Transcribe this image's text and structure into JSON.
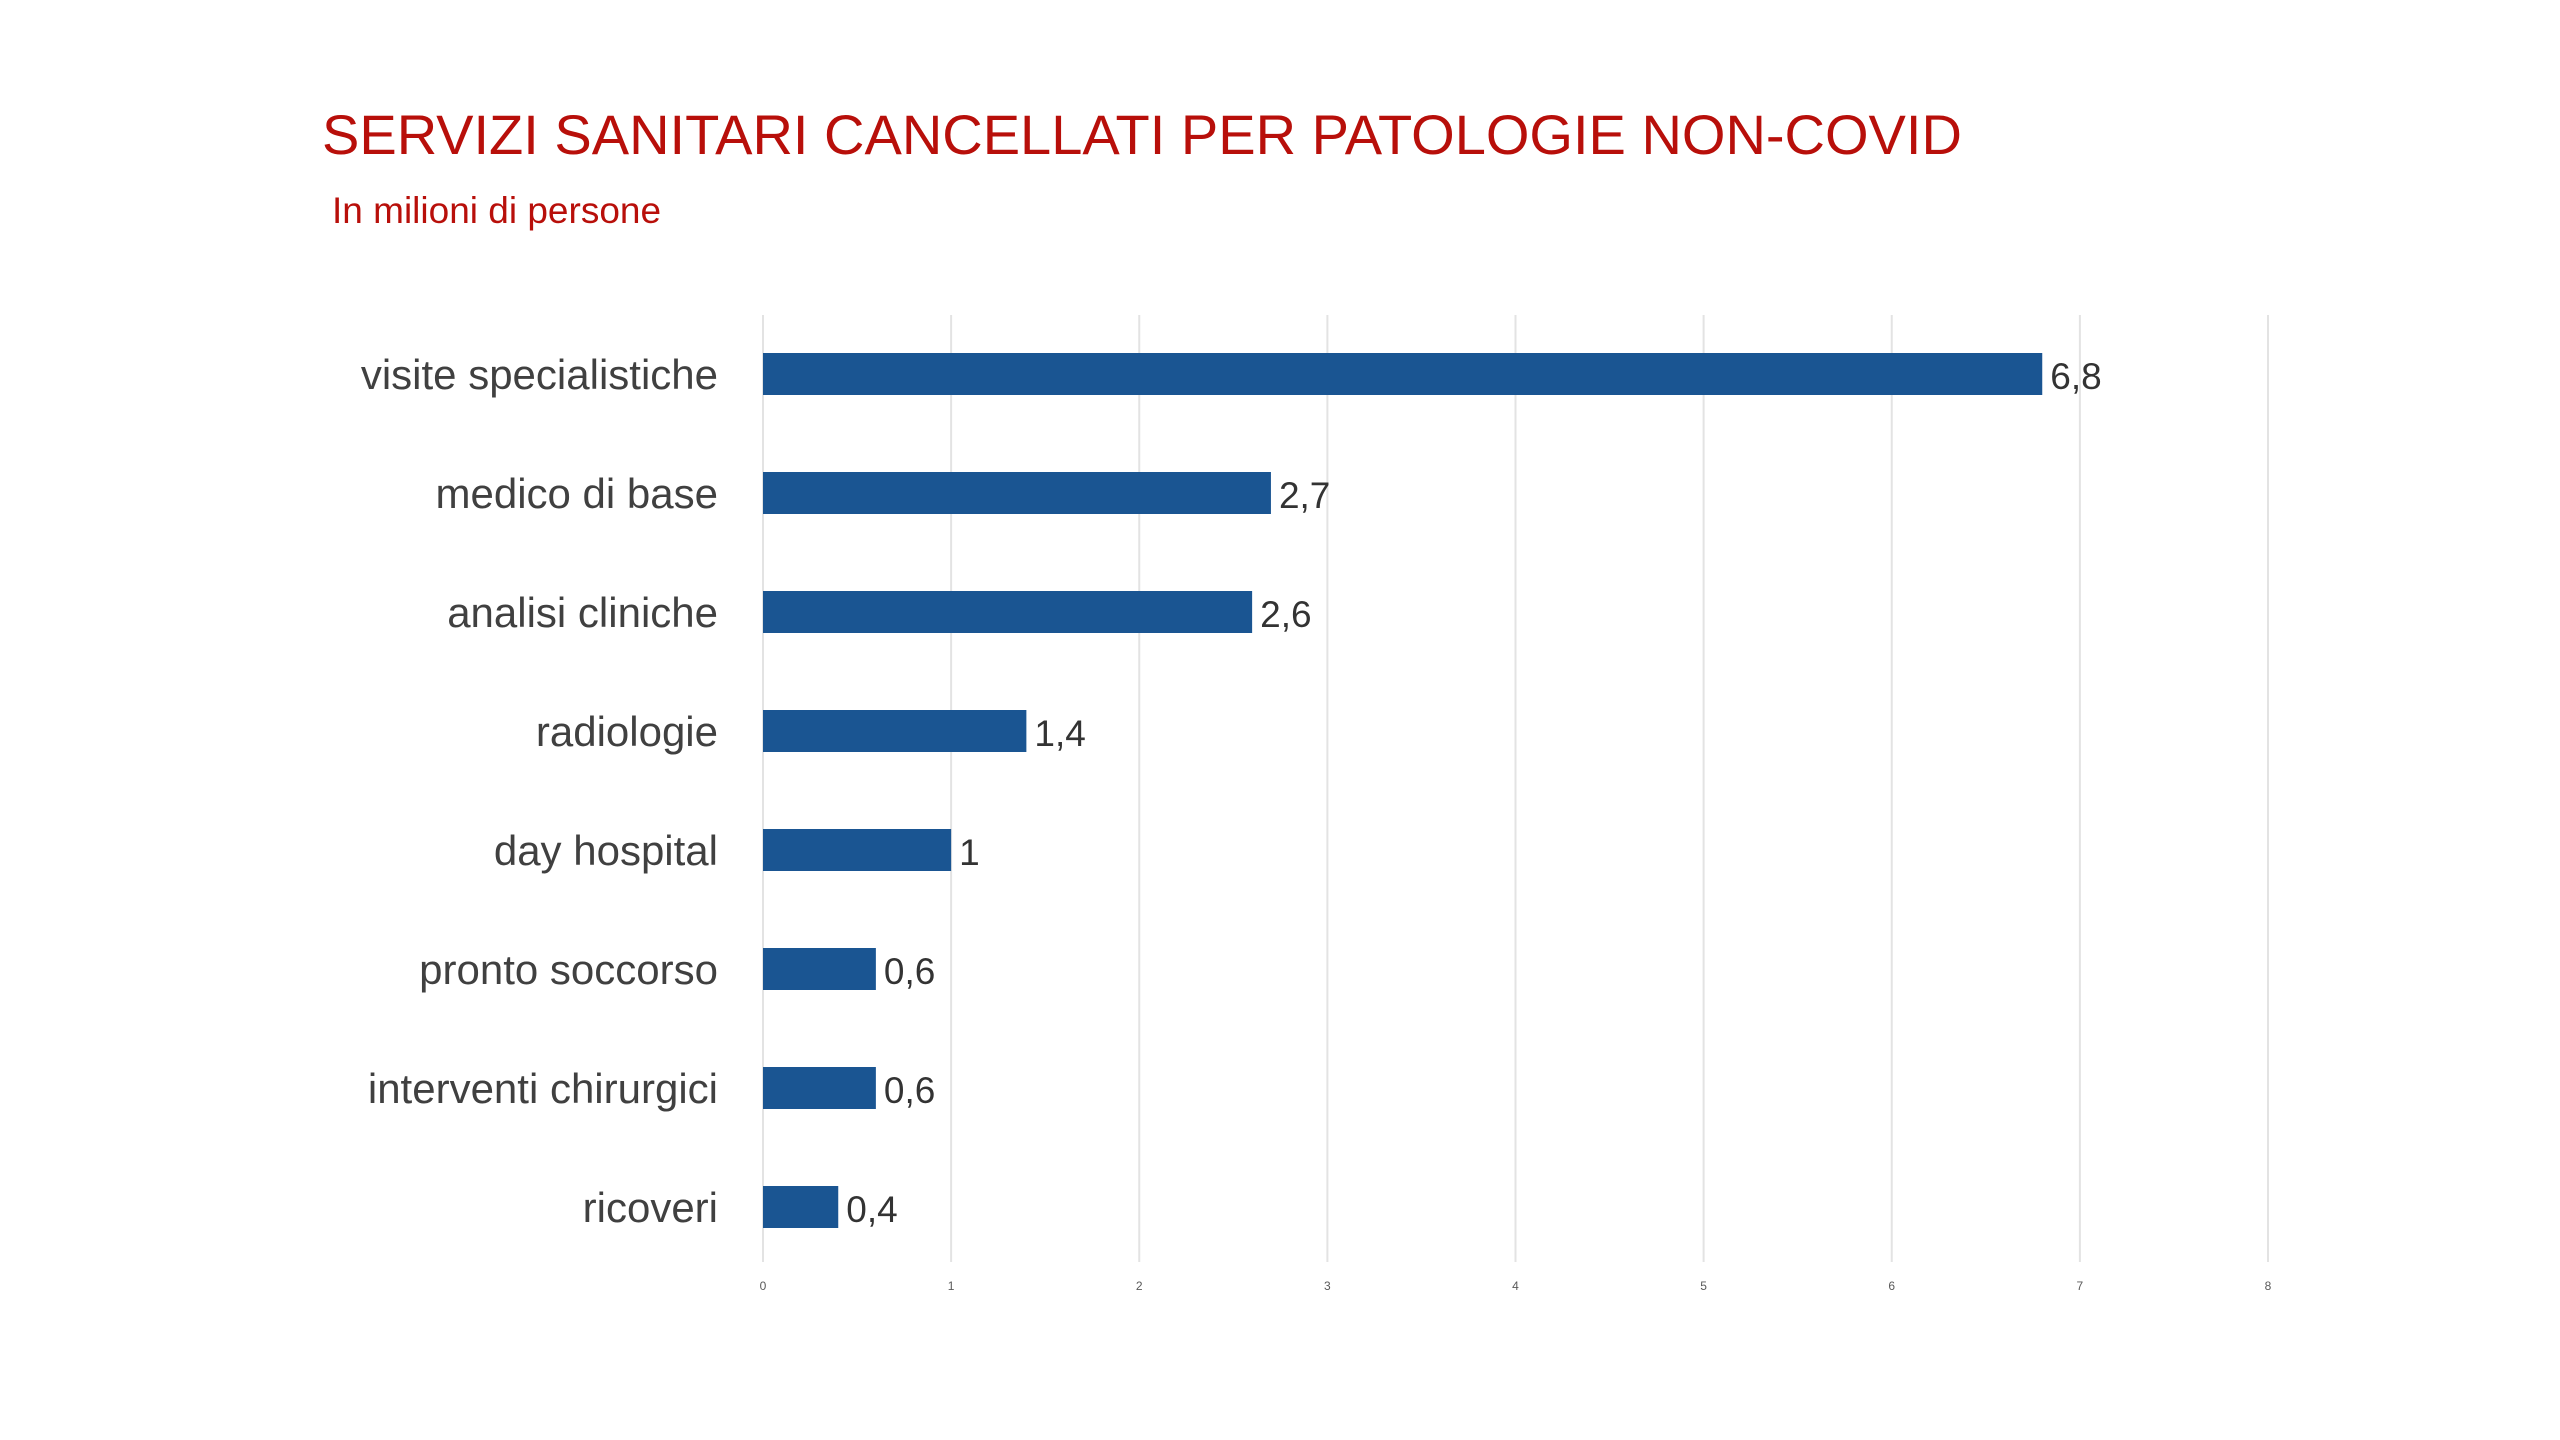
{
  "chart_data": {
    "type": "bar",
    "orientation": "horizontal",
    "title": "SERVIZI SANITARI CANCELLATI PER PATOLOGIE NON-COVID",
    "subtitle": "In milioni di persone",
    "categories": [
      "visite specialistiche",
      "medico di base",
      "analisi cliniche",
      "radiologie",
      "day hospital",
      "pronto soccorso",
      "interventi chirurgici",
      "ricoveri"
    ],
    "values": [
      6.8,
      2.7,
      2.6,
      1.4,
      1,
      0.6,
      0.6,
      0.4
    ],
    "data_labels": [
      "6,8",
      "2,7",
      "2,6",
      "1,4",
      "1",
      "0,6",
      "0,6",
      "0,4"
    ],
    "xlim": [
      0,
      8
    ],
    "xticks": [
      0,
      1,
      2,
      3,
      4,
      5,
      6,
      7,
      8
    ],
    "xtick_labels": [
      "0",
      "1",
      "2",
      "3",
      "4",
      "5",
      "6",
      "7",
      "8"
    ],
    "grid": "vertical",
    "legend": "none",
    "colors": {
      "bar": "#1a5592",
      "title": "#b80f0a",
      "grid": "#e3e3e3"
    }
  }
}
